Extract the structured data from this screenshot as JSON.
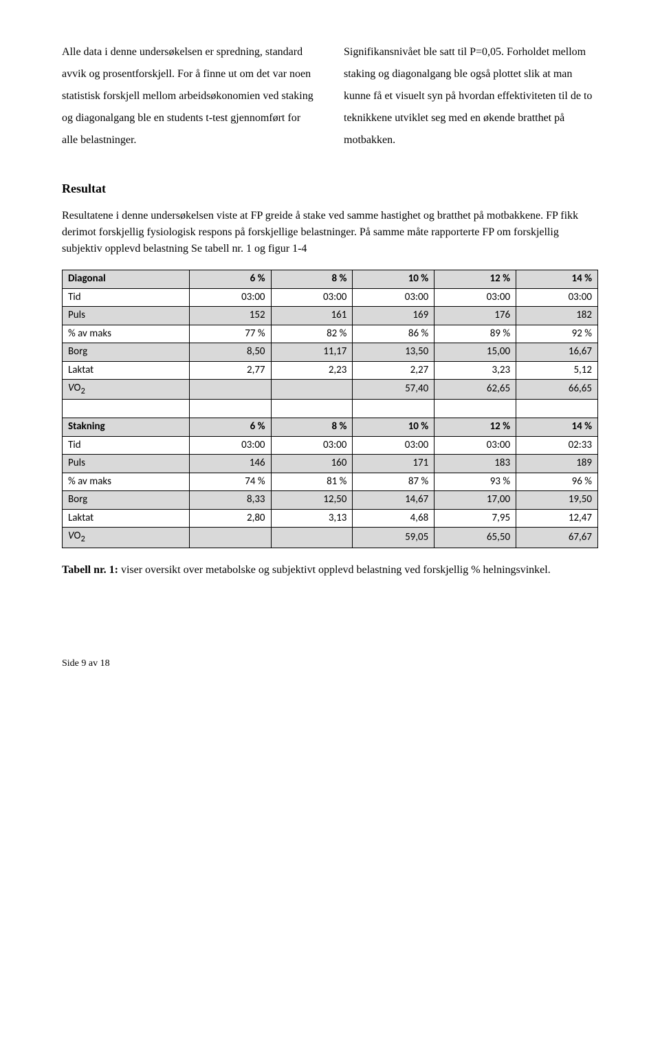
{
  "col_left": "Alle data i denne undersøkelsen er spredning, standard avvik og prosentforskjell. For å finne ut om det var noen statistisk forskjell mellom arbeidsøkonomien ved staking og diagonalgang ble en students t-test gjennomført for alle belastninger.",
  "col_right": "Signifikansnivået ble satt til P=0,05. Forholdet mellom staking og diagonalgang ble også plottet slik at man kunne få et visuelt syn på hvordan effektiviteten til de to teknikkene utviklet seg med en økende bratthet på motbakken.",
  "resultat_heading": "Resultat",
  "intro_text": "Resultatene i denne undersøkelsen viste at FP greide å stake ved samme hastighet og bratthet på motbakkene. FP fikk derimot forskjellig fysiologisk respons på forskjellige belastninger. På samme måte rapporterte FP om forskjellig subjektiv opplevd belastning Se tabell nr. 1 og figur 1-4",
  "table": {
    "header_percents": [
      "6 %",
      "8 %",
      "10 %",
      "12 %",
      "14 %"
    ],
    "diag_label": "Diagonal",
    "stak_label": "Stakning",
    "row_labels": {
      "tid": "Tid",
      "puls": "Puls",
      "pmaks": "% av maks",
      "borg": "Borg",
      "laktat": "Laktat",
      "vo2_v": "V",
      "vo2_o2": "O",
      "vo2_sub": "2"
    },
    "diag": {
      "tid": [
        "03:00",
        "03:00",
        "03:00",
        "03:00",
        "03:00"
      ],
      "puls": [
        "152",
        "161",
        "169",
        "176",
        "182"
      ],
      "pmaks": [
        "77 %",
        "82 %",
        "86 %",
        "89 %",
        "92 %"
      ],
      "borg": [
        "8,50",
        "11,17",
        "13,50",
        "15,00",
        "16,67"
      ],
      "laktat": [
        "2,77",
        "2,23",
        "2,27",
        "3,23",
        "5,12"
      ],
      "vo2": [
        "",
        "",
        "57,40",
        "62,65",
        "66,65"
      ]
    },
    "stak": {
      "tid": [
        "03:00",
        "03:00",
        "03:00",
        "03:00",
        "02:33"
      ],
      "puls": [
        "146",
        "160",
        "171",
        "183",
        "189"
      ],
      "pmaks": [
        "74 %",
        "81 %",
        "87 %",
        "93 %",
        "96 %"
      ],
      "borg": [
        "8,33",
        "12,50",
        "14,67",
        "17,00",
        "19,50"
      ],
      "laktat": [
        "2,80",
        "3,13",
        "4,68",
        "7,95",
        "12,47"
      ],
      "vo2": [
        "",
        "",
        "59,05",
        "65,50",
        "67,67"
      ]
    }
  },
  "caption_bold": "Tabell nr. 1:",
  "caption_rest": " viser oversikt over metabolske og subjektivt opplevd belastning ved forskjellig % helningsvinkel.",
  "footer": "Side 9 av 18"
}
